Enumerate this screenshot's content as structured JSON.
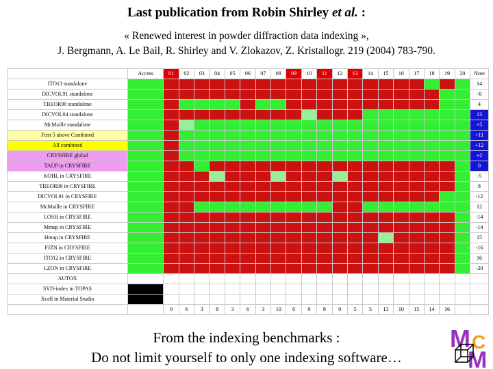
{
  "title_main": "Last publication from Robin Shirley ",
  "title_italic": "et al.",
  "title_suffix": " :",
  "reference_line1": "« Renewed interest in powder diffraction data indexing »,",
  "reference_line2": "J. Bergmann, A. Le Bail, R. Shirley and V. Zlokazov, Z. Kristallogr. 219 (2004) 783-790.",
  "table": {
    "header_access": "Access",
    "columns": [
      "01",
      "02",
      "03",
      "04",
      "05",
      "06",
      "07",
      "08",
      "09",
      "10",
      "11",
      "12",
      "13",
      "14",
      "15",
      "16",
      "17",
      "18",
      "19",
      "20"
    ],
    "header_red_columns": [
      0,
      8,
      10,
      12
    ],
    "header_note": "Note",
    "rows": [
      {
        "label": "ITO13 standalone",
        "style": "white",
        "access": "G",
        "cells": "RRRRRRRRRRRRRRRRRGRG",
        "note": "14"
      },
      {
        "label": "DICVOL91 standalone",
        "style": "white",
        "access": "G",
        "cells": "RRRRRRRRRRRRRRRRRRGG",
        "note": "-8"
      },
      {
        "label": "TREOR90 standalone",
        "style": "white",
        "access": "G",
        "cells": "RGGGGRGGRRRRRRRRRRGG",
        "note": "4"
      },
      {
        "label": "DICVOL04 standalone",
        "style": "white",
        "access": "G",
        "cells": "RRRRRRRRRLRRRGGGGGGG",
        "note": "13",
        "note_blue": true
      },
      {
        "label": "McMaille standalone",
        "style": "white",
        "access": "G",
        "cells": "RLGGGGGGGGGGGGGGGGGG",
        "note": "+5",
        "note_blue": true
      },
      {
        "label": "First 5 above Combined",
        "style": "yellow",
        "access": "G",
        "cells": "RGGGGGGGGGGGGGGGGGGG",
        "note": "+11",
        "note_blue": true
      },
      {
        "label": "All combined",
        "style": "yellowbright",
        "access": "G",
        "cells": "RGGGGGGGGGGGGGGGGGGG",
        "note": "+12",
        "note_blue": true
      },
      {
        "label": "CRYSFIRE global",
        "style": "pink",
        "access": "G",
        "cells": "RGGGGGGGGGGGGGGGGGGG",
        "note": "+2",
        "note_blue": true
      },
      {
        "label": "TAUP in CRYSFIRE",
        "style": "pink",
        "access": "G",
        "cells": "RRGRRRRRRRRRRRRRRRRG",
        "note": "0",
        "note_blue": true
      },
      {
        "label": "KOHL in CRYSFIRE",
        "style": "white",
        "access": "G",
        "cells": "RRRLRRRLRRRLRRRRRRRG",
        "note": "-5"
      },
      {
        "label": "TREOR90 in CRYSFIRE",
        "style": "white",
        "access": "G",
        "cells": "RRRRRRRRRRRRRRRRRRRG",
        "note": "8"
      },
      {
        "label": "DICVOL91 in CRYSFIRE",
        "style": "white",
        "access": "G",
        "cells": "RRRRRRRRRRRRRRRRRRGG",
        "note": "-12"
      },
      {
        "label": "McMaille in CRYSFIRE",
        "style": "white",
        "access": "G",
        "cells": "RRGGGGGGGGGRRGGGGGGG",
        "note": "12"
      },
      {
        "label": "LOSH in CRYSFIRE",
        "style": "white",
        "access": "G",
        "cells": "RRRRRRRRRRRRRRRRRRRG",
        "note": "-14"
      },
      {
        "label": "Mmap in CRYSFIRE",
        "style": "white",
        "access": "G",
        "cells": "RRRRRRRRRRRRRRRRRRRG",
        "note": "-14"
      },
      {
        "label": "Hmap in CRYSFIRE",
        "style": "white",
        "access": "G",
        "cells": "RRRRRRRRRRRRRRLRRRRG",
        "note": "15"
      },
      {
        "label": "FJZN in CRYSFIRE",
        "style": "white",
        "access": "G",
        "cells": "RRRRRRRRRRRRRRRRRRRG",
        "note": "-16"
      },
      {
        "label": "ITO12 in CRYSFIRE",
        "style": "white",
        "access": "G",
        "cells": "RRRRRRRRRRRRRRRRRRRG",
        "note": "16"
      },
      {
        "label": "LZON in CRYSFIRE",
        "style": "white",
        "access": "G",
        "cells": "RRRRRRRRRRRRRRRRRRRG",
        "note": "-20"
      },
      {
        "label": "AUTOX",
        "style": "white",
        "access": "W",
        "cells": "WWWWWWWWWWWWWWWWWWWW",
        "note": ""
      },
      {
        "label": "SVD-index in TOPAS",
        "style": "white",
        "access": "K",
        "cells": "WWWWWWWWWWWWWWWWWWWW",
        "note": ""
      },
      {
        "label": "Xcell in Material Studio",
        "style": "white",
        "access": "K",
        "cells": "WWWWWWWWWWWWWWWWWWWW",
        "note": ""
      }
    ],
    "totals": [
      "0",
      "6",
      "3",
      "8",
      "3",
      "6",
      "3",
      "10",
      "0",
      "0",
      "8",
      "0",
      "5",
      "5",
      "13",
      "10",
      "15",
      "14",
      "16",
      ""
    ],
    "colors": {
      "G": "#33ee33",
      "R": "#cc1111",
      "L": "#99ee99",
      "W": "#ffffff",
      "K": "#000000"
    }
  },
  "footer_line1": "From the indexing benchmarks :",
  "footer_line2": "Do not limit yourself to only one indexing software…",
  "logo": {
    "letter_m": "M",
    "letter_c": "C",
    "letter_m2": "M"
  }
}
